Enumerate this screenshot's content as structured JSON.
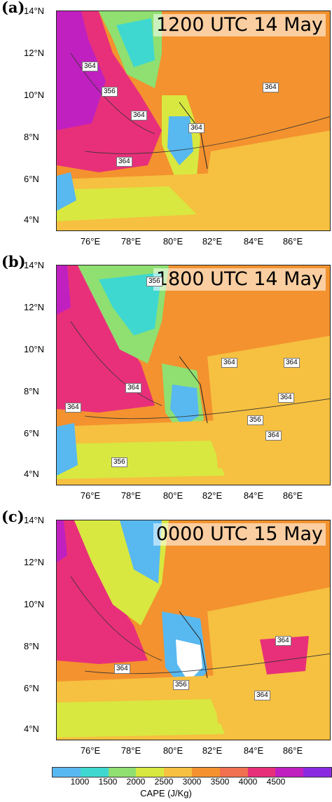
{
  "panels": [
    {
      "letter": "(a)",
      "time": "1200 UTC 14 May",
      "contours": [
        "364",
        "356",
        "364",
        "364",
        "364",
        "364"
      ]
    },
    {
      "letter": "(b)",
      "time": "1800 UTC 14 May",
      "contours": [
        "356",
        "364",
        "364",
        "364",
        "364",
        "364",
        "356",
        "364",
        "356"
      ]
    },
    {
      "letter": "(c)",
      "time": "0000 UTC 15 May",
      "contours": [
        "364",
        "364",
        "356",
        "364"
      ]
    }
  ],
  "lat_labels": [
    "14°N",
    "12°N",
    "10°N",
    "8°N",
    "6°N",
    "4°N"
  ],
  "lon_labels": [
    "76°E",
    "78°E",
    "80°E",
    "82°E",
    "84°E",
    "86°E"
  ],
  "colorbar": {
    "title": "CAPE (J/Kg)",
    "ticks": [
      "1000",
      "1500",
      "2000",
      "2500",
      "3000",
      "3500",
      "4000",
      "4500"
    ],
    "colors": [
      "#58b8f0",
      "#3fd8d0",
      "#8fe070",
      "#d8e840",
      "#f6c040",
      "#f3922e",
      "#f07050",
      "#e8307a",
      "#c020c0",
      "#8a2be2"
    ]
  }
}
